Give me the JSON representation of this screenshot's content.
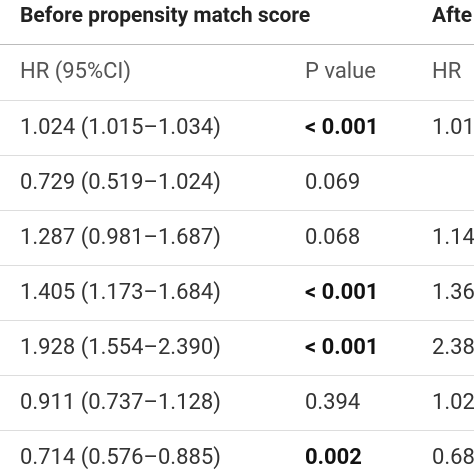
{
  "header": {
    "group_before": "Before propensity match score",
    "group_after": "Afte"
  },
  "columns": [
    "HR (95%CI)",
    "P value",
    "HR"
  ],
  "rows": [
    {
      "hr": "1.024 (1.015–1.034)",
      "p": "< 0.001",
      "p_bold": true,
      "hr_after": "1.01"
    },
    {
      "hr": "0.729 (0.519–1.024)",
      "p": "0.069",
      "p_bold": false,
      "hr_after": null
    },
    {
      "hr": "1.287 (0.981–1.687)",
      "p": "0.068",
      "p_bold": false,
      "hr_after": "1.14"
    },
    {
      "hr": "1.405 (1.173–1.684)",
      "p": "< 0.001",
      "p_bold": true,
      "hr_after": "1.36"
    },
    {
      "hr": "1.928 (1.554–2.390)",
      "p": "< 0.001",
      "p_bold": true,
      "hr_after": "2.38"
    },
    {
      "hr": "0.911 (0.737–1.128)",
      "p": "0.394",
      "p_bold": false,
      "hr_after": "1.02"
    },
    {
      "hr": "0.714 (0.576–0.885)",
      "p": "0.002",
      "p_bold": true,
      "hr_after": "0.68"
    }
  ]
}
